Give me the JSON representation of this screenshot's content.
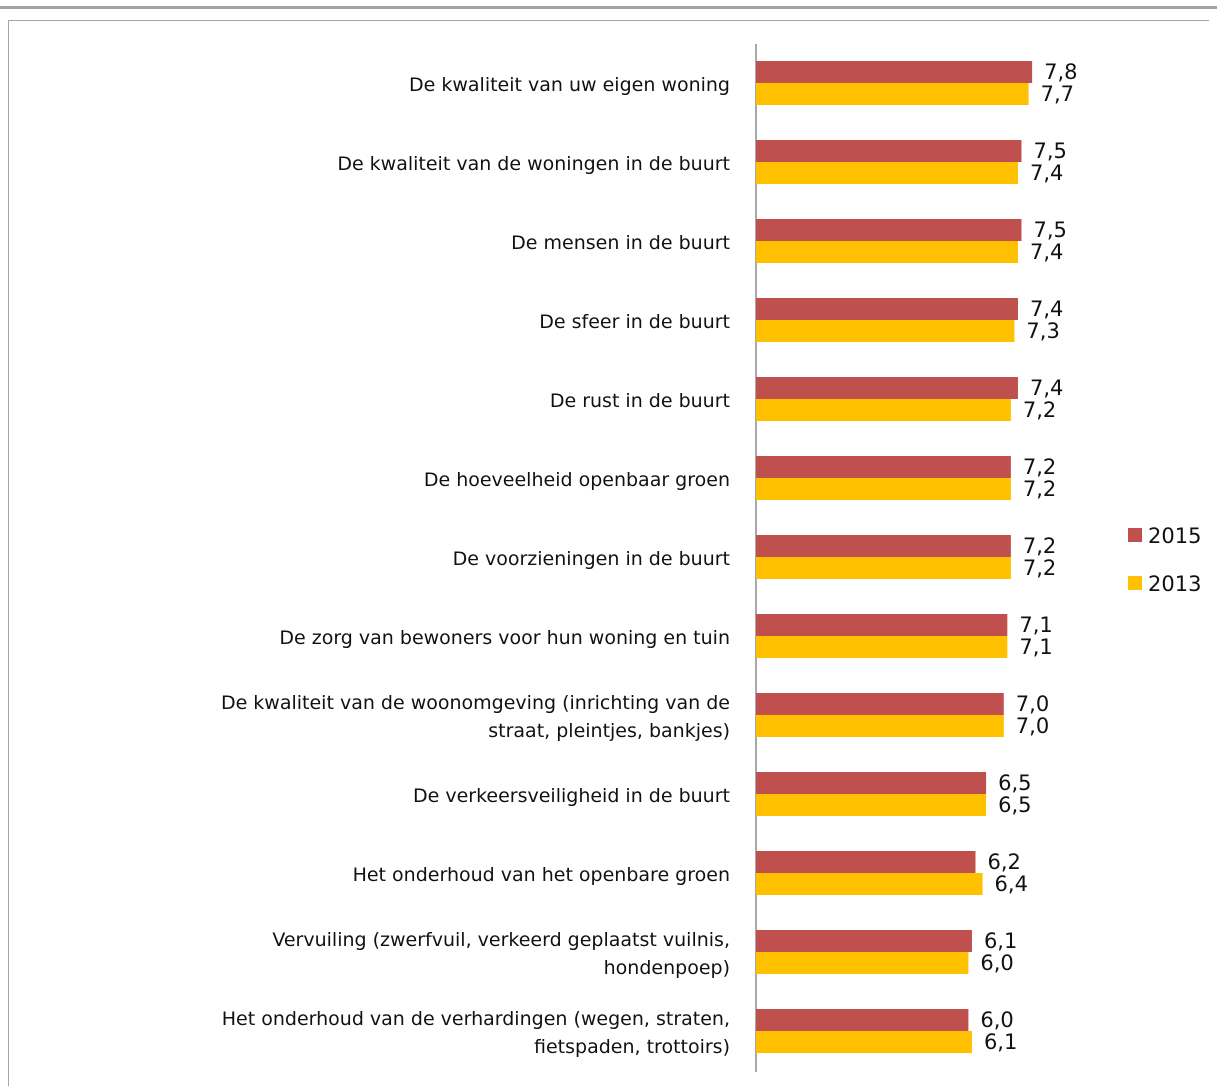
{
  "chart_data": {
    "type": "bar",
    "orientation": "horizontal",
    "categories": [
      [
        "De kwaliteit van uw eigen woning"
      ],
      [
        "De kwaliteit van de woningen in de buurt"
      ],
      [
        "De mensen in de buurt"
      ],
      [
        "De sfeer in de buurt"
      ],
      [
        "De rust in de buurt"
      ],
      [
        "De hoeveelheid openbaar groen"
      ],
      [
        "De voorzieningen in de buurt"
      ],
      [
        "De zorg van bewoners voor hun woning en tuin"
      ],
      [
        "De kwaliteit van de woonomgeving (inrichting van de",
        "straat, pleintjes, bankjes)"
      ],
      [
        "De verkeersveiligheid  in de buurt"
      ],
      [
        "Het onderhoud van het openbare groen"
      ],
      [
        "Vervuiling (zwerfvuil, verkeerd geplaatst vuilnis,",
        "hondenpoep)"
      ],
      [
        "Het onderhoud van de verhardingen (wegen, straten,",
        "fietspaden, trottoirs)"
      ]
    ],
    "series": [
      {
        "name": "2015",
        "color": "#c0504d",
        "values": [
          7.8,
          7.5,
          7.5,
          7.4,
          7.4,
          7.2,
          7.2,
          7.1,
          7.0,
          6.5,
          6.2,
          6.1,
          6.0
        ],
        "labels": [
          "7,8",
          "7,5",
          "7,5",
          "7,4",
          "7,4",
          "7,2",
          "7,2",
          "7,1",
          "7,0",
          "6,5",
          "6,2",
          "6,1",
          "6,0"
        ]
      },
      {
        "name": "2013",
        "color": "#ffc000",
        "values": [
          7.7,
          7.4,
          7.4,
          7.3,
          7.2,
          7.2,
          7.2,
          7.1,
          7.0,
          6.5,
          6.4,
          6.0,
          6.1
        ],
        "labels": [
          "7,7",
          "7,4",
          "7,4",
          "7,3",
          "7,2",
          "7,2",
          "7,2",
          "7,1",
          "7,0",
          "6,5",
          "6,4",
          "6,0",
          "6,1"
        ]
      }
    ],
    "xlim": [
      0,
      10
    ],
    "grid": false,
    "legend_position": "right"
  }
}
